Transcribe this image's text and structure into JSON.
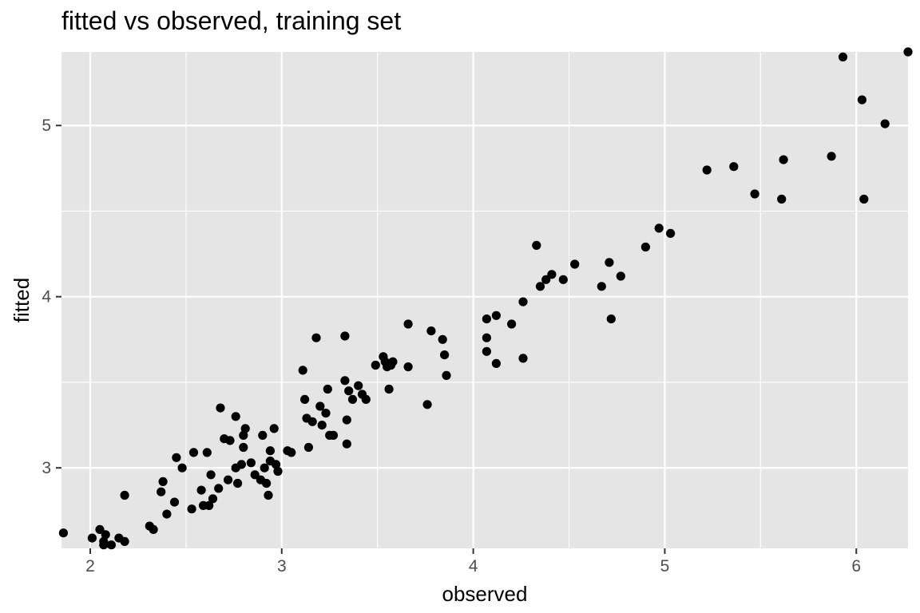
{
  "chart_data": {
    "type": "scatter",
    "title": "fitted vs observed, training set",
    "xlabel": "observed",
    "ylabel": "fitted",
    "xlim": [
      1.85,
      6.27
    ],
    "ylim": [
      2.53,
      5.43
    ],
    "xticks": [
      2,
      3,
      4,
      5,
      6
    ],
    "yticks": [
      3,
      4,
      5
    ],
    "grid": true,
    "colors": {
      "panel": "#e5e5e5",
      "grid": "#ffffff",
      "point": "#000000",
      "tick_text": "#4d4d4d"
    },
    "points": [
      [
        1.86,
        2.62
      ],
      [
        2.01,
        2.59
      ],
      [
        2.05,
        2.64
      ],
      [
        2.07,
        2.57
      ],
      [
        2.07,
        2.55
      ],
      [
        2.08,
        2.61
      ],
      [
        2.11,
        2.55
      ],
      [
        2.15,
        2.59
      ],
      [
        2.18,
        2.57
      ],
      [
        2.18,
        2.84
      ],
      [
        2.31,
        2.66
      ],
      [
        2.33,
        2.64
      ],
      [
        2.37,
        2.86
      ],
      [
        2.38,
        2.92
      ],
      [
        2.4,
        2.73
      ],
      [
        2.44,
        2.8
      ],
      [
        2.45,
        3.06
      ],
      [
        2.48,
        3.0
      ],
      [
        2.53,
        2.76
      ],
      [
        2.54,
        3.09
      ],
      [
        2.58,
        2.87
      ],
      [
        2.59,
        2.78
      ],
      [
        2.61,
        3.09
      ],
      [
        2.62,
        2.78
      ],
      [
        2.63,
        2.96
      ],
      [
        2.64,
        2.82
      ],
      [
        2.67,
        2.88
      ],
      [
        2.68,
        3.35
      ],
      [
        2.7,
        3.17
      ],
      [
        2.72,
        2.93
      ],
      [
        2.73,
        3.16
      ],
      [
        2.76,
        3.3
      ],
      [
        2.76,
        3.0
      ],
      [
        2.77,
        2.91
      ],
      [
        2.79,
        3.02
      ],
      [
        2.8,
        3.19
      ],
      [
        2.8,
        3.12
      ],
      [
        2.81,
        3.23
      ],
      [
        2.84,
        3.03
      ],
      [
        2.86,
        2.96
      ],
      [
        2.89,
        2.93
      ],
      [
        2.9,
        3.19
      ],
      [
        2.91,
        3.0
      ],
      [
        2.92,
        2.91
      ],
      [
        2.93,
        2.84
      ],
      [
        2.94,
        3.04
      ],
      [
        2.94,
        3.1
      ],
      [
        2.96,
        3.23
      ],
      [
        2.97,
        3.02
      ],
      [
        2.98,
        2.98
      ],
      [
        3.03,
        3.1
      ],
      [
        3.05,
        3.09
      ],
      [
        3.11,
        3.57
      ],
      [
        3.12,
        3.4
      ],
      [
        3.13,
        3.29
      ],
      [
        3.14,
        3.12
      ],
      [
        3.16,
        3.27
      ],
      [
        3.18,
        3.76
      ],
      [
        3.2,
        3.36
      ],
      [
        3.21,
        3.25
      ],
      [
        3.23,
        3.32
      ],
      [
        3.24,
        3.46
      ],
      [
        3.25,
        3.19
      ],
      [
        3.27,
        3.19
      ],
      [
        3.33,
        3.77
      ],
      [
        3.33,
        3.51
      ],
      [
        3.34,
        3.28
      ],
      [
        3.34,
        3.14
      ],
      [
        3.35,
        3.45
      ],
      [
        3.37,
        3.4
      ],
      [
        3.4,
        3.48
      ],
      [
        3.42,
        3.43
      ],
      [
        3.44,
        3.4
      ],
      [
        3.49,
        3.6
      ],
      [
        3.53,
        3.65
      ],
      [
        3.54,
        3.62
      ],
      [
        3.55,
        3.59
      ],
      [
        3.56,
        3.46
      ],
      [
        3.57,
        3.6
      ],
      [
        3.58,
        3.62
      ],
      [
        3.66,
        3.84
      ],
      [
        3.66,
        3.59
      ],
      [
        3.76,
        3.37
      ],
      [
        3.78,
        3.8
      ],
      [
        3.84,
        3.75
      ],
      [
        3.85,
        3.66
      ],
      [
        3.86,
        3.54
      ],
      [
        4.07,
        3.87
      ],
      [
        4.07,
        3.76
      ],
      [
        4.07,
        3.68
      ],
      [
        4.12,
        3.89
      ],
      [
        4.12,
        3.61
      ],
      [
        4.2,
        3.84
      ],
      [
        4.26,
        3.97
      ],
      [
        4.26,
        3.64
      ],
      [
        4.33,
        4.3
      ],
      [
        4.35,
        4.06
      ],
      [
        4.38,
        4.1
      ],
      [
        4.41,
        4.13
      ],
      [
        4.47,
        4.1
      ],
      [
        4.53,
        4.19
      ],
      [
        4.67,
        4.06
      ],
      [
        4.71,
        4.2
      ],
      [
        4.72,
        3.87
      ],
      [
        4.77,
        4.12
      ],
      [
        4.9,
        4.29
      ],
      [
        4.97,
        4.4
      ],
      [
        5.03,
        4.37
      ],
      [
        5.22,
        4.74
      ],
      [
        5.36,
        4.76
      ],
      [
        5.47,
        4.6
      ],
      [
        5.61,
        4.57
      ],
      [
        5.62,
        4.8
      ],
      [
        5.87,
        4.82
      ],
      [
        5.93,
        5.4
      ],
      [
        6.03,
        5.15
      ],
      [
        6.04,
        4.57
      ],
      [
        6.15,
        5.01
      ],
      [
        6.27,
        5.43
      ]
    ]
  }
}
